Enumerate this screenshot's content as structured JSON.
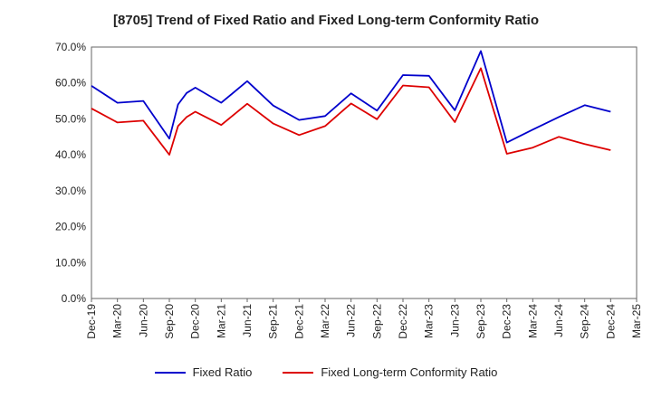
{
  "title": "[8705]  Trend of Fixed Ratio and Fixed Long-term Conformity Ratio",
  "colors": {
    "fixed_ratio": "#0000cc",
    "conformity_ratio": "#dd0000",
    "grid": "#888888",
    "axis": "#666666"
  },
  "chart_data": {
    "type": "line",
    "title": "[8705]  Trend of Fixed Ratio and Fixed Long-term Conformity Ratio",
    "xlabel": "",
    "ylabel": "",
    "ylim": [
      0,
      70
    ],
    "y_ticks": [
      "0.0%",
      "10.0%",
      "20.0%",
      "30.0%",
      "40.0%",
      "50.0%",
      "60.0%",
      "70.0%"
    ],
    "x_ticks": [
      "Dec-19",
      "Mar-20",
      "Jun-20",
      "Sep-20",
      "Dec-20",
      "Mar-21",
      "Jun-21",
      "Sep-21",
      "Dec-21",
      "Mar-22",
      "Jun-22",
      "Sep-22",
      "Dec-22",
      "Mar-23",
      "Jun-23",
      "Sep-23",
      "Dec-23",
      "Mar-24",
      "Jun-24",
      "Sep-24",
      "Dec-24",
      "Mar-25"
    ],
    "grid": true,
    "legend_position": "bottom",
    "series": [
      {
        "name": "Fixed Ratio",
        "color": "#0000cc",
        "points": [
          [
            "Dec-19",
            59.2
          ],
          [
            "Mar-20",
            54.5
          ],
          [
            "Jun-20",
            55.0
          ],
          [
            "Sep-20",
            44.5
          ],
          [
            "Oct-20",
            54.0
          ],
          [
            "Nov-20",
            57.2
          ],
          [
            "Dec-20",
            58.7
          ],
          [
            "Mar-21",
            54.5
          ],
          [
            "Jun-21",
            60.5
          ],
          [
            "Sep-21",
            53.7
          ],
          [
            "Dec-21",
            49.7
          ],
          [
            "Mar-22",
            50.8
          ],
          [
            "Jun-22",
            57.1
          ],
          [
            "Sep-22",
            52.3
          ],
          [
            "Dec-22",
            62.2
          ],
          [
            "Mar-23",
            62.0
          ],
          [
            "Jun-23",
            52.4
          ],
          [
            "Sep-23",
            68.9
          ],
          [
            "Dec-23",
            43.4
          ],
          [
            "Mar-24",
            47.0
          ],
          [
            "Jun-24",
            50.5
          ],
          [
            "Sep-24",
            53.8
          ],
          [
            "Dec-24",
            52.0
          ]
        ]
      },
      {
        "name": "Fixed Long-term Conformity Ratio",
        "color": "#dd0000",
        "points": [
          [
            "Dec-19",
            52.9
          ],
          [
            "Mar-20",
            49.0
          ],
          [
            "Jun-20",
            49.5
          ],
          [
            "Sep-20",
            40.0
          ],
          [
            "Oct-20",
            48.0
          ],
          [
            "Nov-20",
            50.5
          ],
          [
            "Dec-20",
            52.0
          ],
          [
            "Mar-21",
            48.3
          ],
          [
            "Jun-21",
            54.2
          ],
          [
            "Sep-21",
            48.7
          ],
          [
            "Dec-21",
            45.5
          ],
          [
            "Mar-22",
            48.0
          ],
          [
            "Jun-22",
            54.3
          ],
          [
            "Sep-22",
            49.9
          ],
          [
            "Dec-22",
            59.3
          ],
          [
            "Mar-23",
            58.8
          ],
          [
            "Jun-23",
            49.1
          ],
          [
            "Sep-23",
            64.1
          ],
          [
            "Dec-23",
            40.3
          ],
          [
            "Mar-24",
            42.0
          ],
          [
            "Jun-24",
            45.0
          ],
          [
            "Sep-24",
            43.0
          ],
          [
            "Dec-24",
            41.3
          ]
        ]
      }
    ]
  }
}
